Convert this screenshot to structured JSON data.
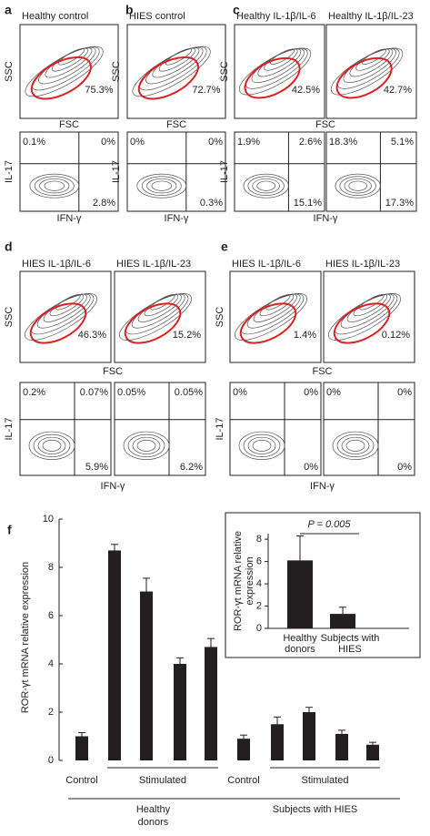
{
  "panels": [
    {
      "letter": "a",
      "y_label_top": "SSC",
      "x_label_top": "FSC",
      "y_label_bottom": "IL-17",
      "x_label_bottom": "IFN-γ",
      "plots": [
        {
          "title": "Healthy control",
          "gate": "75.3%",
          "upper_left": "0.1%",
          "upper_right": "0%",
          "lower_right": "2.8%"
        }
      ]
    },
    {
      "letter": "b",
      "y_label_top": "SSC",
      "x_label_top": "FSC",
      "y_label_bottom": "IL-17",
      "x_label_bottom": "IFN-γ",
      "plots": [
        {
          "title": "HIES control",
          "gate": "72.7%",
          "upper_left": "0%",
          "upper_right": "0%",
          "lower_right": "0.3%"
        }
      ]
    },
    {
      "letter": "c",
      "y_label_top": "SSC",
      "x_label_top": "FSC",
      "y_label_bottom": "IL-17",
      "x_label_bottom": "IFN-γ",
      "plots": [
        {
          "title": "Healthy IL-1β/IL-6",
          "gate": "42.5%",
          "upper_left": "1.9%",
          "upper_right": "2.6%",
          "lower_right": "15.1%"
        },
        {
          "title": "Healthy IL-1β/IL-23",
          "gate": "42.7%",
          "upper_left": "18.3%",
          "upper_right": "5.1%",
          "lower_right": "17.3%"
        }
      ]
    },
    {
      "letter": "d",
      "y_label_top": "SSC",
      "x_label_top": "FSC",
      "y_label_bottom": "IL-17",
      "x_label_bottom": "IFN-γ",
      "plots": [
        {
          "title": "HIES IL-1β/IL-6",
          "gate": "46.3%",
          "upper_left": "0.2%",
          "upper_right": "0.07%",
          "lower_right": "5.9%"
        },
        {
          "title": "HIES IL-1β/IL-23",
          "gate": "15.2%",
          "upper_left": "0.05%",
          "upper_right": "0.05%",
          "lower_right": "6.2%"
        }
      ]
    },
    {
      "letter": "e",
      "y_label_top": "SSC",
      "x_label_top": "FSC",
      "y_label_bottom": "IL-17",
      "x_label_bottom": "IFN-γ",
      "plots": [
        {
          "title": "HIES IL-1β/IL-6",
          "gate": "1.4%",
          "upper_left": "0%",
          "upper_right": "0%",
          "lower_right": "0%"
        },
        {
          "title": "HIES IL-1β/IL-23",
          "gate": "0.12%",
          "upper_left": "0%",
          "upper_right": "0%",
          "lower_right": "0%"
        }
      ]
    }
  ],
  "chart_data": [
    {
      "type": "bar",
      "letter": "f",
      "ylabel": "ROR-γt mRNA relative expression",
      "ylim": [
        0,
        10
      ],
      "yticks": [
        0,
        2,
        4,
        6,
        8,
        10
      ],
      "color": "#231f20",
      "groups": [
        {
          "name": [
            "Healthy",
            "donors"
          ],
          "subgroups": [
            {
              "name": "Control",
              "values": [
                1.0
              ],
              "errors": [
                0.15
              ]
            },
            {
              "name": "Stimulated",
              "values": [
                8.7,
                7.0,
                4.0,
                4.7
              ],
              "errors": [
                0.25,
                0.55,
                0.25,
                0.35
              ]
            }
          ]
        },
        {
          "name": [
            "Subjects with HIES"
          ],
          "subgroups": [
            {
              "name": "Control",
              "values": [
                0.9
              ],
              "errors": [
                0.15
              ]
            },
            {
              "name": "Stimulated",
              "values": [
                1.5,
                2.0,
                1.1,
                0.65
              ],
              "errors": [
                0.3,
                0.2,
                0.15,
                0.1
              ]
            }
          ]
        }
      ]
    },
    {
      "type": "inset-bar",
      "ylabel": [
        "ROR-γt mRNA relative",
        "expression"
      ],
      "ylim": [
        0,
        8.5
      ],
      "yticks": [
        0,
        2,
        4,
        6,
        8
      ],
      "color": "#231f20",
      "categories": [
        [
          "Healthy",
          "donors"
        ],
        [
          "Subjects with",
          "HIES"
        ]
      ],
      "values": [
        6.1,
        1.3
      ],
      "errors": [
        2.2,
        0.6
      ],
      "annotation": "P = 0.005"
    }
  ]
}
